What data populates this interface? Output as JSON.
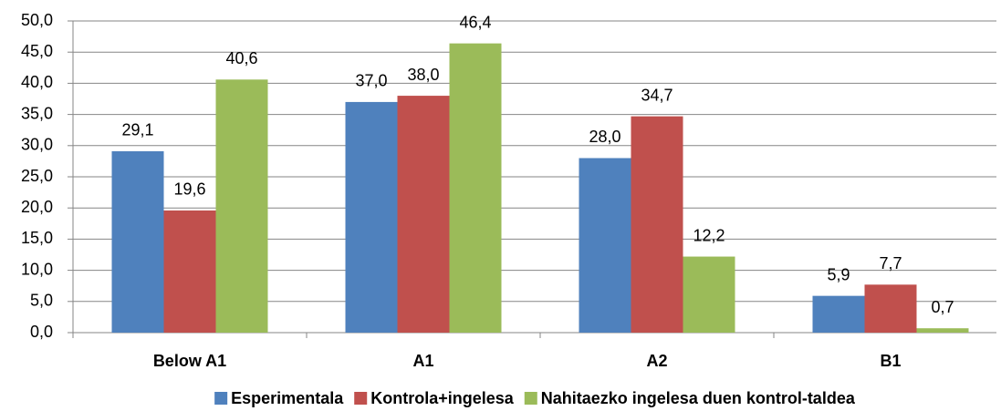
{
  "chart_data": {
    "type": "bar",
    "categories": [
      "Below A1",
      "A1",
      "A2",
      "B1"
    ],
    "series": [
      {
        "name": "Esperimentala",
        "color": "#4f81bd",
        "values": [
          29.1,
          37.0,
          28.0,
          5.9
        ],
        "value_labels": [
          "29,1",
          "37,0",
          "28,0",
          "5,9"
        ]
      },
      {
        "name": "Kontrola+ingelesa",
        "color": "#c0504d",
        "values": [
          19.6,
          38.0,
          34.7,
          7.7
        ],
        "value_labels": [
          "19,6",
          "38,0",
          "34,7",
          "7,7"
        ]
      },
      {
        "name": "Nahitaezko ingelesa duen kontrol-taldea",
        "color": "#9bbb59",
        "values": [
          40.6,
          46.4,
          12.2,
          0.7
        ],
        "value_labels": [
          "40,6",
          "46,4",
          "12,2",
          "0,7"
        ]
      }
    ],
    "ylim": [
      0,
      50
    ],
    "yticks": [
      {
        "value": 0,
        "label": "0,0"
      },
      {
        "value": 5,
        "label": "5,0"
      },
      {
        "value": 10,
        "label": "10,0"
      },
      {
        "value": 15,
        "label": "15,0"
      },
      {
        "value": 20,
        "label": "20,0"
      },
      {
        "value": 25,
        "label": "25,0"
      },
      {
        "value": 30,
        "label": "30,0"
      },
      {
        "value": 35,
        "label": "35,0"
      },
      {
        "value": 40,
        "label": "40,0"
      },
      {
        "value": 45,
        "label": "45,0"
      },
      {
        "value": 50,
        "label": "50,0"
      }
    ],
    "grid": true,
    "legend": "bottom"
  }
}
